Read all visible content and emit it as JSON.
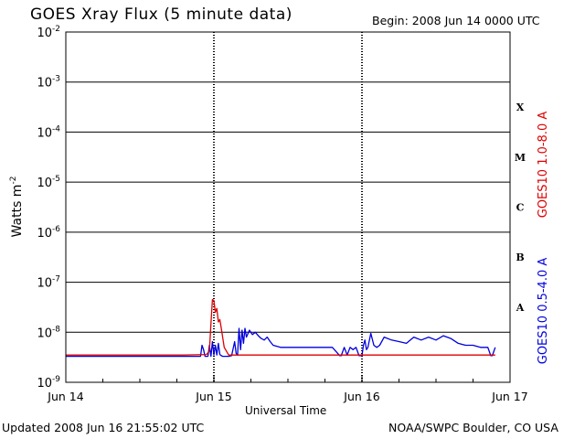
{
  "header": {
    "title": "GOES Xray Flux (5 minute data)",
    "begin": "Begin:  2008 Jun 14 0000 UTC"
  },
  "footer": {
    "updated": "Updated 2008 Jun 16 21:55:02 UTC",
    "credit": "NOAA/SWPC Boulder, CO USA"
  },
  "chart_data": {
    "type": "line",
    "title": "GOES Xray Flux (5 minute data)",
    "xlabel": "Universal Time",
    "ylabel_base": "Watts m",
    "ylabel_exp": "-2",
    "y_scale": "log",
    "ylim": [
      1e-09,
      0.01
    ],
    "y_ticks": [
      {
        "base": "10",
        "exp": "-9",
        "value": 1e-09
      },
      {
        "base": "10",
        "exp": "-8",
        "value": 1e-08
      },
      {
        "base": "10",
        "exp": "-7",
        "value": 1e-07
      },
      {
        "base": "10",
        "exp": "-6",
        "value": 1e-06
      },
      {
        "base": "10",
        "exp": "-5",
        "value": 1e-05
      },
      {
        "base": "10",
        "exp": "-4",
        "value": 0.0001
      },
      {
        "base": "10",
        "exp": "-3",
        "value": 0.001
      },
      {
        "base": "10",
        "exp": "-2",
        "value": 0.01
      }
    ],
    "x_ticks": [
      "Jun 14",
      "Jun 15",
      "Jun 16",
      "Jun 17"
    ],
    "xlim_days": [
      14,
      17
    ],
    "grid": true,
    "flare_classes": [
      {
        "label": "A",
        "value": 1e-08
      },
      {
        "label": "B",
        "value": 1e-07
      },
      {
        "label": "C",
        "value": 1e-06
      },
      {
        "label": "M",
        "value": 1e-05
      },
      {
        "label": "X",
        "value": 0.0001
      }
    ],
    "series": [
      {
        "name": "GOES10 1.0-8.0 A",
        "color": "#dd0000",
        "x": [
          14.0,
          14.3,
          14.5,
          14.8,
          14.95,
          14.97,
          14.98,
          14.99,
          15.0,
          15.01,
          15.02,
          15.03,
          15.04,
          15.05,
          15.07,
          15.1,
          15.5,
          16.0,
          16.5,
          16.9
        ],
        "y": [
          3.5e-09,
          3.5e-09,
          3.5e-09,
          3.5e-09,
          3.6e-09,
          4.2e-09,
          1.5e-08,
          4.5e-08,
          4.3e-08,
          2.5e-08,
          3e-08,
          1.6e-08,
          1.8e-08,
          1.2e-08,
          5e-09,
          3.5e-09,
          3.5e-09,
          3.5e-09,
          3.5e-09,
          3.5e-09
        ]
      },
      {
        "name": "GOES10 0.5-4.0 A",
        "color": "#0000dd",
        "x": [
          14.0,
          14.2,
          14.9,
          14.91,
          14.92,
          14.93,
          14.94,
          14.96,
          14.97,
          14.98,
          14.99,
          15.0,
          15.01,
          15.02,
          15.03,
          15.04,
          15.05,
          15.06,
          15.08,
          15.1,
          15.12,
          15.14,
          15.15,
          15.16,
          15.17,
          15.18,
          15.19,
          15.2,
          15.21,
          15.22,
          15.24,
          15.26,
          15.28,
          15.3,
          15.32,
          15.34,
          15.36,
          15.38,
          15.4,
          15.45,
          15.5,
          15.55,
          15.6,
          15.7,
          15.8,
          15.85,
          15.86,
          15.88,
          15.9,
          15.92,
          15.94,
          15.96,
          15.98,
          15.99,
          16.0,
          16.01,
          16.02,
          16.03,
          16.04,
          16.06,
          16.08,
          16.1,
          16.12,
          16.15,
          16.2,
          16.25,
          16.3,
          16.35,
          16.4,
          16.45,
          16.5,
          16.55,
          16.6,
          16.65,
          16.7,
          16.75,
          16.8,
          16.85,
          16.87,
          16.88,
          16.9
        ],
        "y": [
          3.3e-09,
          3.3e-09,
          3.3e-09,
          3.3e-09,
          5.5e-09,
          4.5e-09,
          3.3e-09,
          3.3e-09,
          5.5e-09,
          3.3e-09,
          6.5e-09,
          3.5e-09,
          5.5e-09,
          3.5e-09,
          6e-09,
          3.6e-09,
          3.4e-09,
          3.3e-09,
          3.3e-09,
          3.3e-09,
          3.4e-09,
          6.5e-09,
          3.8e-09,
          3.5e-09,
          1.2e-08,
          4.5e-09,
          1.1e-08,
          6e-09,
          1.2e-08,
          8e-09,
          1.1e-08,
          9e-09,
          1e-08,
          8.5e-09,
          7.5e-09,
          7e-09,
          8e-09,
          6.5e-09,
          5.5e-09,
          5e-09,
          5e-09,
          5e-09,
          5e-09,
          5e-09,
          5e-09,
          3.4e-09,
          3.4e-09,
          5e-09,
          3.5e-09,
          5e-09,
          4.5e-09,
          5e-09,
          3.4e-09,
          3.4e-09,
          3.4e-09,
          5.5e-09,
          7e-09,
          4.5e-09,
          5e-09,
          9.5e-09,
          5.5e-09,
          5e-09,
          5.5e-09,
          8e-09,
          7e-09,
          6.5e-09,
          6e-09,
          8e-09,
          7e-09,
          8e-09,
          7e-09,
          8.5e-09,
          7.5e-09,
          6e-09,
          5.5e-09,
          5.5e-09,
          5e-09,
          5e-09,
          3.4e-09,
          3.4e-09,
          5e-09
        ]
      }
    ]
  }
}
